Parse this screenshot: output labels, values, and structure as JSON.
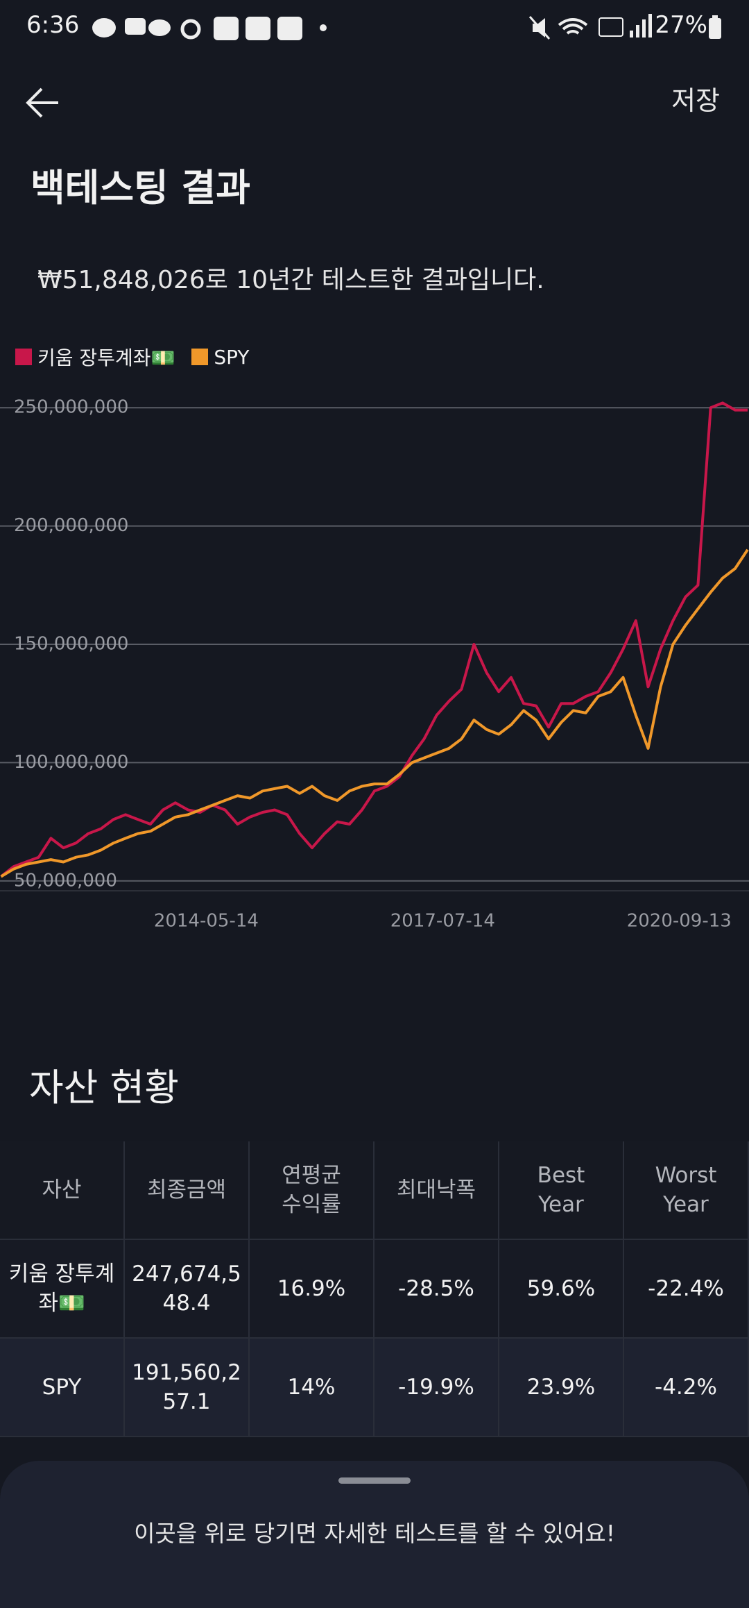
{
  "status_bar": {
    "time": "6:36",
    "battery": "27%"
  },
  "header": {
    "action": "저장",
    "title": "백테스팅 결과",
    "subtitle": "₩51,848,026로 10년간 테스트한 결과입니다."
  },
  "chart_data": {
    "type": "line",
    "x": [
      "2011-08-14",
      "2011-10-14",
      "2011-12-14",
      "2012-02-14",
      "2012-04-14",
      "2012-06-14",
      "2012-08-14",
      "2012-10-14",
      "2012-12-14",
      "2013-02-14",
      "2013-04-14",
      "2013-06-14",
      "2013-08-14",
      "2013-10-14",
      "2013-12-14",
      "2014-02-14",
      "2014-04-14",
      "2014-06-14",
      "2014-08-14",
      "2014-10-14",
      "2014-12-14",
      "2015-02-14",
      "2015-04-14",
      "2015-06-14",
      "2015-08-14",
      "2015-10-14",
      "2015-12-14",
      "2016-02-14",
      "2016-04-14",
      "2016-06-14",
      "2016-08-14",
      "2016-10-14",
      "2016-12-14",
      "2017-02-14",
      "2017-04-14",
      "2017-06-14",
      "2017-08-14",
      "2017-10-14",
      "2017-12-14",
      "2018-02-14",
      "2018-04-14",
      "2018-06-14",
      "2018-08-14",
      "2018-10-14",
      "2018-12-14",
      "2019-02-14",
      "2019-04-14",
      "2019-06-14",
      "2019-08-14",
      "2019-10-14",
      "2019-12-14",
      "2020-02-14",
      "2020-04-14",
      "2020-06-14",
      "2020-08-14",
      "2020-10-14",
      "2020-12-14",
      "2021-02-14",
      "2021-04-14",
      "2021-06-14",
      "2021-08-14"
    ],
    "series": [
      {
        "name": "키움 장투계좌💵",
        "color": "#c8174a",
        "values": [
          51848026,
          56000000,
          58000000,
          60000000,
          68000000,
          64000000,
          66000000,
          70000000,
          72000000,
          76000000,
          78000000,
          76000000,
          74000000,
          80000000,
          83000000,
          80000000,
          79000000,
          82000000,
          80000000,
          74000000,
          77000000,
          79000000,
          80000000,
          78000000,
          70000000,
          64000000,
          70000000,
          75000000,
          74000000,
          80000000,
          88000000,
          90000000,
          94000000,
          103000000,
          110000000,
          120000000,
          126000000,
          131000000,
          150000000,
          138000000,
          130000000,
          136000000,
          125000000,
          124000000,
          115000000,
          125000000,
          125000000,
          128000000,
          130000000,
          138000000,
          148000000,
          160000000,
          132000000,
          148000000,
          160000000,
          170000000,
          175000000,
          250000000,
          252000000,
          249000000,
          249000000
        ]
      },
      {
        "name": "SPY",
        "color": "#f0982a",
        "values": [
          51848026,
          55000000,
          57000000,
          58000000,
          59000000,
          58000000,
          60000000,
          61000000,
          63000000,
          66000000,
          68000000,
          70000000,
          71000000,
          74000000,
          77000000,
          78000000,
          80000000,
          82000000,
          84000000,
          86000000,
          85000000,
          88000000,
          89000000,
          90000000,
          87000000,
          90000000,
          86000000,
          84000000,
          88000000,
          90000000,
          91000000,
          91000000,
          95000000,
          100000000,
          102000000,
          104000000,
          106000000,
          110000000,
          118000000,
          114000000,
          112000000,
          116000000,
          122000000,
          118000000,
          110000000,
          117000000,
          122000000,
          121000000,
          128000000,
          130000000,
          136000000,
          120000000,
          106000000,
          132000000,
          150000000,
          158000000,
          165000000,
          172000000,
          178000000,
          182000000,
          190000000
        ]
      }
    ],
    "xlim": [
      "2011-08-14",
      "2021-08-14"
    ],
    "xticks": [
      "2014-05-14",
      "2017-07-14",
      "2020-09-13"
    ],
    "ylim": [
      48000000,
      252000000
    ],
    "yticks": [
      {
        "value": 50000000,
        "label": "50,000,000"
      },
      {
        "value": 100000000,
        "label": "100,000,000"
      },
      {
        "value": 150000000,
        "label": "150,000,000"
      },
      {
        "value": 200000000,
        "label": "200,000,000"
      },
      {
        "value": 250000000,
        "label": "250,000,000"
      }
    ],
    "grid": true
  },
  "assets": {
    "title": "자산 현황",
    "headers": [
      "자산",
      "최종금액",
      "연평균\n수익률",
      "최대낙폭",
      "Best\nYear",
      "Worst\nYear"
    ],
    "rows": [
      [
        "키움 장투계좌💵",
        "247,674,548.4",
        "16.9%",
        "-28.5%",
        "59.6%",
        "-22.4%"
      ],
      [
        "SPY",
        "191,560,257.1",
        "14%",
        "-19.9%",
        "23.9%",
        "-4.2%"
      ]
    ]
  },
  "sheet": {
    "hint": "이곳을 위로 당기면 자세한 테스트를 할 수 있어요!"
  }
}
